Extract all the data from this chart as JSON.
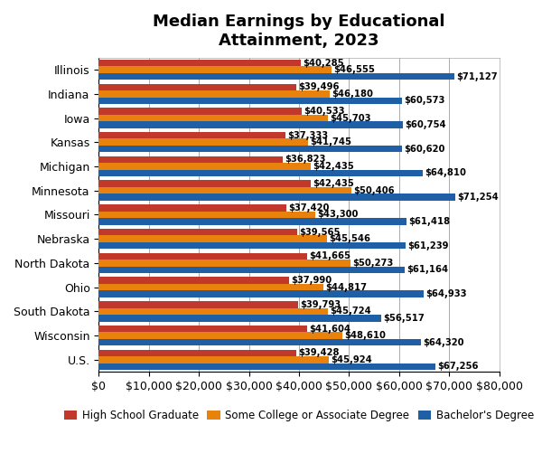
{
  "title": "Median Earnings by Educational\nAttainment, 2023",
  "states": [
    "Illinois",
    "Indiana",
    "Iowa",
    "Kansas",
    "Michigan",
    "Minnesota",
    "Missouri",
    "Nebraska",
    "North Dakota",
    "Ohio",
    "South Dakota",
    "Wisconsin",
    "U.S."
  ],
  "high_school": [
    40285,
    39496,
    40533,
    37333,
    36823,
    42435,
    37420,
    39565,
    41665,
    37990,
    39793,
    41604,
    39428
  ],
  "some_college": [
    46555,
    46180,
    45703,
    41745,
    42435,
    50406,
    43300,
    45546,
    50273,
    44817,
    45724,
    48610,
    45924
  ],
  "bachelors": [
    71127,
    60573,
    60754,
    60620,
    64810,
    71254,
    61418,
    61239,
    61164,
    64933,
    56517,
    64320,
    67256
  ],
  "hs_color": "#C0392B",
  "sc_color": "#E8820C",
  "ba_color": "#1F5FA6",
  "legend_labels": [
    "High School Graduate",
    "Some College or Associate Degree",
    "Bachelor's Degree"
  ],
  "xlim": [
    0,
    80000
  ],
  "xticks": [
    0,
    10000,
    20000,
    30000,
    40000,
    50000,
    60000,
    70000,
    80000
  ],
  "bar_height": 0.28,
  "label_fontsize": 7.2,
  "title_fontsize": 13,
  "tick_fontsize": 9,
  "legend_fontsize": 8.5,
  "fig_width": 6.0,
  "fig_height": 5.22
}
